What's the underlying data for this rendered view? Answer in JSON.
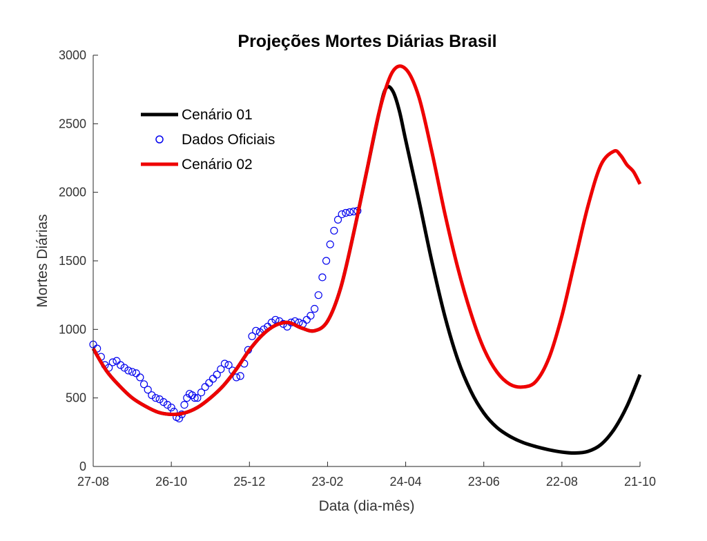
{
  "chart_data": {
    "type": "line",
    "title": "Projeções Mortes Diárias Brasil",
    "xlabel": "Data (dia-mês)",
    "ylabel": "Mortes Diárias",
    "xlim": [
      0,
      420
    ],
    "ylim": [
      0,
      3000
    ],
    "x_ticks": [
      {
        "x": 0,
        "label": "27-08"
      },
      {
        "x": 60,
        "label": "26-10"
      },
      {
        "x": 120,
        "label": "25-12"
      },
      {
        "x": 180,
        "label": "23-02"
      },
      {
        "x": 240,
        "label": "24-04"
      },
      {
        "x": 300,
        "label": "23-06"
      },
      {
        "x": 360,
        "label": "22-08"
      },
      {
        "x": 420,
        "label": "21-10"
      }
    ],
    "y_ticks": [
      0,
      500,
      1000,
      1500,
      2000,
      2500,
      3000
    ],
    "grid": false,
    "legend_position": "top-left",
    "series": [
      {
        "name": "Cenário 01",
        "style": "line",
        "color": "#000000",
        "x": [
          0,
          10,
          20,
          30,
          40,
          50,
          60,
          70,
          80,
          90,
          100,
          110,
          120,
          130,
          140,
          150,
          160,
          170,
          180,
          190,
          200,
          210,
          220,
          225,
          230,
          235,
          240,
          250,
          260,
          270,
          280,
          290,
          300,
          310,
          320,
          330,
          340,
          350,
          360,
          370,
          380,
          390,
          400,
          410,
          420
        ],
        "y": [
          860,
          700,
          590,
          500,
          440,
          395,
          380,
          390,
          430,
          500,
          590,
          710,
          850,
          960,
          1030,
          1050,
          1010,
          990,
          1060,
          1300,
          1700,
          2150,
          2600,
          2760,
          2740,
          2600,
          2380,
          1950,
          1500,
          1100,
          780,
          550,
          390,
          285,
          220,
          175,
          145,
          122,
          105,
          98,
          110,
          160,
          270,
          440,
          670
        ]
      },
      {
        "name": "Dados Oficiais",
        "style": "markers",
        "color": "#0000ee",
        "x": [
          0,
          3,
          6,
          9,
          12,
          15,
          18,
          21,
          24,
          27,
          30,
          33,
          36,
          39,
          42,
          45,
          48,
          51,
          54,
          57,
          60,
          62,
          64,
          66,
          68,
          70,
          72,
          74,
          76,
          78,
          80,
          83,
          86,
          89,
          92,
          95,
          98,
          101,
          104,
          107,
          110,
          113,
          116,
          119,
          122,
          125,
          128,
          131,
          134,
          137,
          140,
          143,
          146,
          149,
          152,
          155,
          158,
          161,
          164,
          167,
          170,
          173,
          176,
          179,
          182,
          185,
          188,
          191,
          194,
          197,
          200,
          203
        ],
        "y": [
          890,
          860,
          800,
          740,
          720,
          760,
          770,
          740,
          720,
          700,
          690,
          680,
          650,
          600,
          560,
          520,
          500,
          490,
          470,
          450,
          430,
          400,
          360,
          350,
          380,
          450,
          500,
          530,
          520,
          500,
          500,
          540,
          580,
          610,
          640,
          670,
          710,
          750,
          740,
          700,
          650,
          660,
          750,
          850,
          950,
          990,
          980,
          1000,
          1020,
          1050,
          1070,
          1060,
          1040,
          1020,
          1050,
          1060,
          1050,
          1040,
          1070,
          1100,
          1150,
          1250,
          1380,
          1500,
          1620,
          1720,
          1800,
          1840,
          1850,
          1855,
          1860,
          1865
        ]
      },
      {
        "name": "Cenário 02",
        "style": "line",
        "color": "#ee0000",
        "x": [
          0,
          10,
          20,
          30,
          40,
          50,
          60,
          70,
          80,
          90,
          100,
          110,
          120,
          130,
          140,
          150,
          160,
          170,
          180,
          190,
          200,
          210,
          220,
          230,
          240,
          250,
          260,
          270,
          280,
          290,
          300,
          310,
          320,
          330,
          340,
          350,
          360,
          370,
          380,
          390,
          400,
          405,
          410,
          415,
          420
        ],
        "y": [
          860,
          700,
          590,
          500,
          440,
          395,
          380,
          390,
          430,
          500,
          590,
          710,
          850,
          960,
          1030,
          1050,
          1010,
          990,
          1060,
          1300,
          1700,
          2150,
          2600,
          2880,
          2900,
          2700,
          2300,
          1850,
          1450,
          1120,
          860,
          690,
          600,
          580,
          620,
          790,
          1100,
          1500,
          1900,
          2200,
          2300,
          2270,
          2200,
          2150,
          2060
        ]
      }
    ]
  }
}
